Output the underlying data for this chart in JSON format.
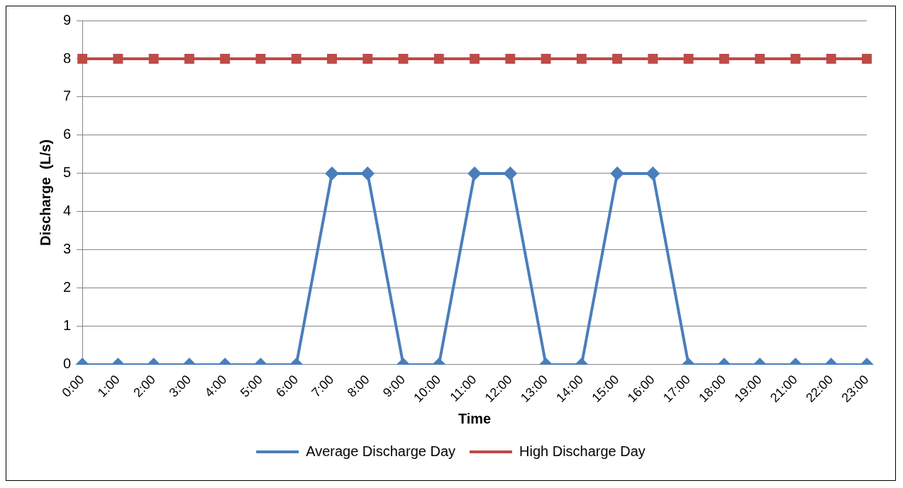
{
  "chart_data": {
    "type": "line",
    "xlabel": "Time",
    "ylabel": "Discharge  (L/s)",
    "categories": [
      "0:00",
      "1:00",
      "2:00",
      "3:00",
      "4:00",
      "5:00",
      "6:00",
      "7:00",
      "8:00",
      "9:00",
      "10:00",
      "11:00",
      "12:00",
      "13:00",
      "14:00",
      "15:00",
      "16:00",
      "17:00",
      "18:00",
      "19:00",
      "21:00",
      "22:00",
      "23:00"
    ],
    "series": [
      {
        "name": "Average Discharge Day",
        "color": "#4a7ebb",
        "marker": "diamond",
        "values": [
          0,
          0,
          0,
          0,
          0,
          0,
          0,
          5,
          5,
          0,
          0,
          5,
          5,
          0,
          0,
          5,
          5,
          0,
          0,
          0,
          0,
          0,
          0
        ]
      },
      {
        "name": "High Discharge Day",
        "color": "#be4b48",
        "marker": "square",
        "values": [
          8,
          8,
          8,
          8,
          8,
          8,
          8,
          8,
          8,
          8,
          8,
          8,
          8,
          8,
          8,
          8,
          8,
          8,
          8,
          8,
          8,
          8,
          8
        ]
      }
    ],
    "ylim": [
      0,
      9
    ],
    "yticks": [
      0,
      1,
      2,
      3,
      4,
      5,
      6,
      7,
      8,
      9
    ],
    "grid": "y",
    "legend": "bottom",
    "line_style": "solid"
  }
}
